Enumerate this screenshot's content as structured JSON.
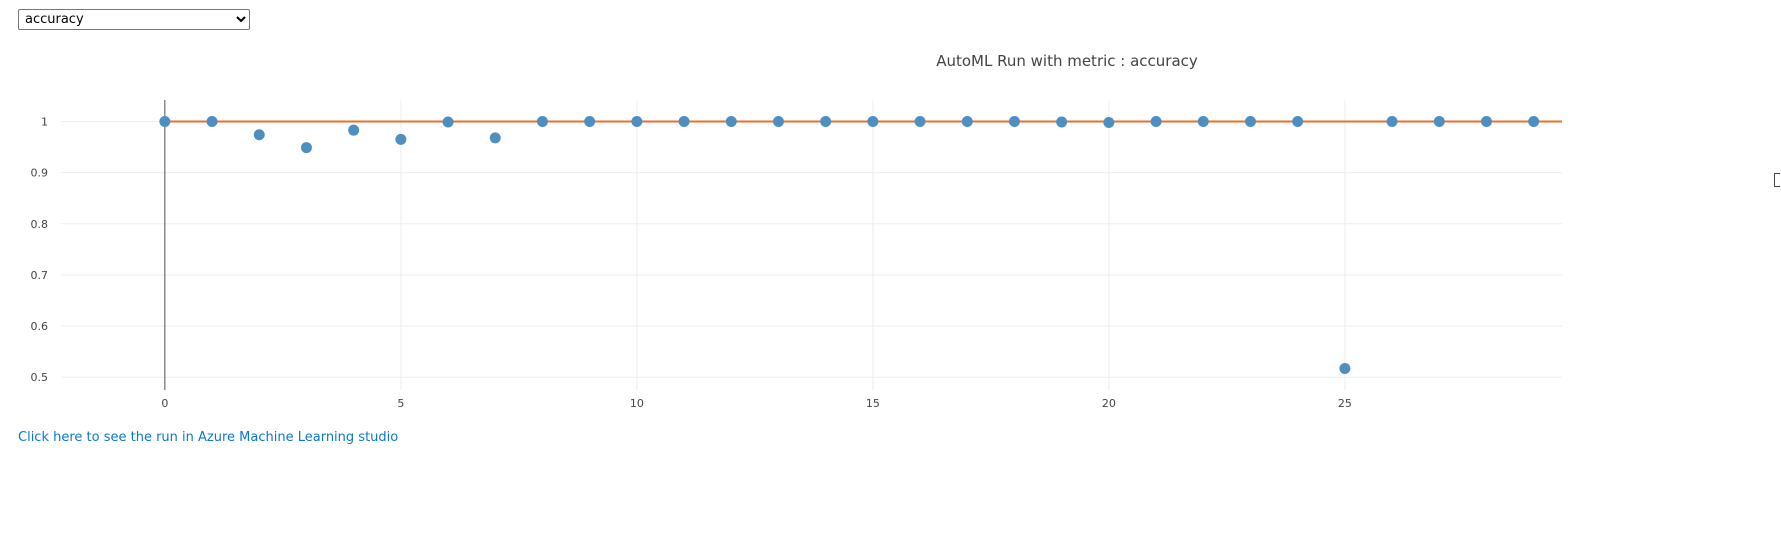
{
  "metric_select": {
    "selected": "accuracy",
    "options": [
      "accuracy"
    ]
  },
  "link_text": "Click here to see the run in Azure Machine Learning studio",
  "chart_data": {
    "type": "scatter",
    "title": "AutoML Run with metric : accuracy",
    "xlabel": "",
    "ylabel": "",
    "xlim": [
      -2.2,
      29.6
    ],
    "ylim": [
      0.475,
      1.042
    ],
    "xticks": [
      0,
      5,
      10,
      15,
      20,
      25
    ],
    "yticks": [
      0.5,
      0.6,
      0.7,
      0.8,
      0.9,
      1
    ],
    "grid": true,
    "legend": "none",
    "series": [
      {
        "marker_color": "#4e8fc2",
        "x": [
          0,
          1,
          2,
          3,
          4,
          5,
          6,
          7,
          8,
          9,
          10,
          11,
          12,
          13,
          14,
          15,
          16,
          17,
          18,
          19,
          20,
          21,
          22,
          23,
          24,
          25,
          26,
          27,
          28,
          29
        ],
        "y": [
          1.0,
          1.0,
          0.974,
          0.949,
          0.983,
          0.965,
          0.999,
          0.968,
          1.0,
          1.0,
          1.0,
          1.0,
          1.0,
          1.0,
          1.0,
          1.0,
          1.0,
          1.0,
          1.0,
          0.999,
          0.998,
          1.0,
          1.0,
          1.0,
          1.0,
          0.517,
          1.0,
          1.0,
          1.0,
          1.0
        ]
      }
    ],
    "best_line": {
      "y": 1.0,
      "color": "#e8702a"
    },
    "vertical_line": {
      "x": 0,
      "color": "#555555"
    }
  }
}
